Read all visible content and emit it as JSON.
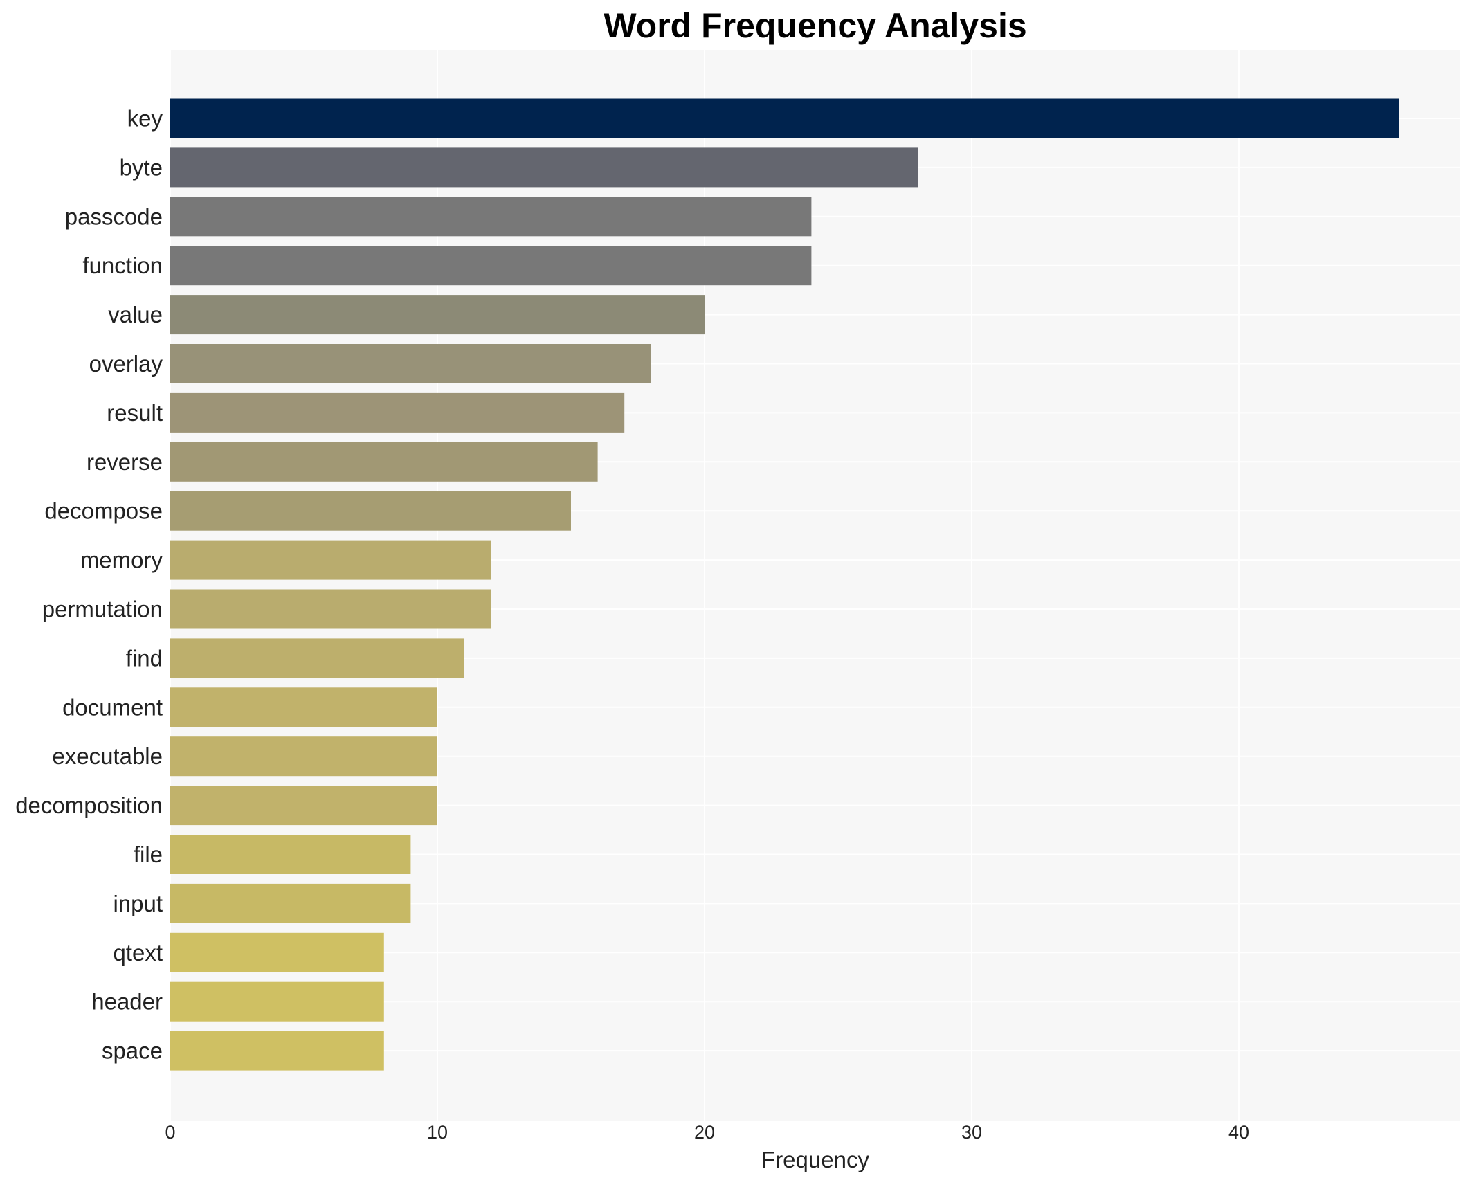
{
  "chart_data": {
    "type": "bar",
    "orientation": "horizontal",
    "title": "Word Frequency Analysis",
    "xlabel": "Frequency",
    "ylabel": "",
    "xlim": [
      0,
      48.5
    ],
    "xticks": [
      0,
      10,
      20,
      30,
      40
    ],
    "grid": true,
    "legend": "none",
    "categories": [
      "key",
      "byte",
      "passcode",
      "function",
      "value",
      "overlay",
      "result",
      "reverse",
      "decompose",
      "memory",
      "permutation",
      "find",
      "document",
      "executable",
      "decomposition",
      "file",
      "input",
      "qtext",
      "header",
      "space"
    ],
    "values": [
      46,
      28,
      24,
      24,
      20,
      18,
      17,
      16,
      15,
      12,
      12,
      11,
      10,
      10,
      10,
      9,
      9,
      8,
      8,
      8
    ],
    "colors": [
      "#00234e",
      "#64666f",
      "#787878",
      "#787878",
      "#8c8a76",
      "#989278",
      "#9d9477",
      "#a19874",
      "#a69d72",
      "#b9ac6e",
      "#b9ac6e",
      "#bdaf6c",
      "#c1b26b",
      "#c1b26b",
      "#c1b26b",
      "#c7b965",
      "#c7b965",
      "#cfc063",
      "#cfc063",
      "#cfc063"
    ]
  },
  "style": {
    "plot_background": "#f7f7f7",
    "grid_color": "#ffffff"
  }
}
